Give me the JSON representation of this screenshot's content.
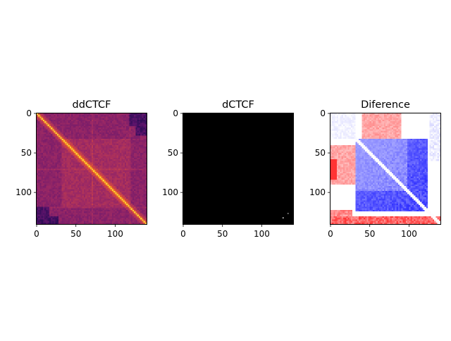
{
  "figure": {
    "background": "#ffffff"
  },
  "chart_data": [
    {
      "type": "heatmap",
      "title": "ddCTCF",
      "colormap": "magma",
      "matrix_size": 140,
      "xlim": [
        0,
        140
      ],
      "ylim": [
        140,
        0
      ],
      "xticks": [
        0,
        50,
        100
      ],
      "yticks": [
        0,
        50,
        100
      ],
      "grid": false,
      "legend": "none",
      "features": {
        "diagonal_color": "#fbb14d",
        "domain_boundaries": [
          32,
          70,
          118
        ],
        "background_color": "#5a1f83",
        "bright_domain_color": "#7c3a90",
        "dark_corners_color": "#1e0f3a"
      }
    },
    {
      "type": "heatmap",
      "title": "dCTCF",
      "colormap": "gray",
      "matrix_size": 140,
      "xlim": [
        0,
        140
      ],
      "ylim": [
        140,
        0
      ],
      "xticks": [
        0,
        50,
        100
      ],
      "yticks": [
        0,
        50,
        100
      ],
      "grid": false,
      "legend": "none",
      "features": {
        "background_color": "#000000",
        "speck_color": "#ffffff"
      }
    },
    {
      "type": "heatmap",
      "title": "Diference",
      "colormap": "bwr",
      "matrix_size": 140,
      "xlim": [
        0,
        140
      ],
      "ylim": [
        140,
        0
      ],
      "xticks": [
        0,
        50,
        100
      ],
      "yticks": [
        0,
        50,
        100
      ],
      "grid": false,
      "legend": "none",
      "features": {
        "positive_color": "#ff0000",
        "negative_color": "#0000ff",
        "neutral_color": "#ffffff",
        "blue_domain": [
          32,
          125
        ],
        "red_regions": [
          "upper-middle",
          "left-band",
          "bottom-band"
        ]
      }
    }
  ]
}
